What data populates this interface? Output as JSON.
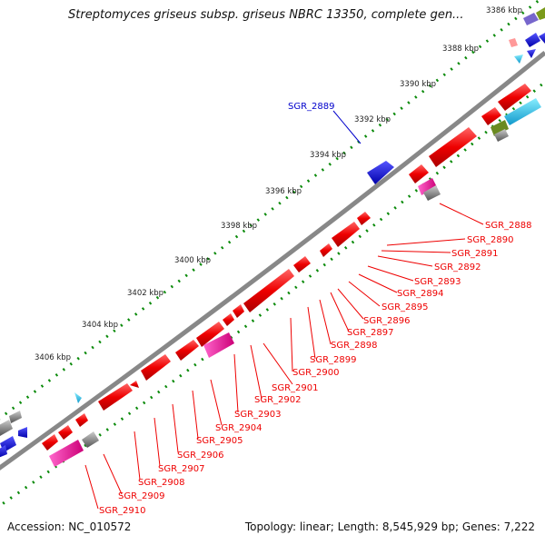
{
  "header": {
    "title": "Streptomyces griseus subsp. griseus NBRC 13350, complete gen..."
  },
  "footer": {
    "accession": "Accession: NC_010572",
    "stats": "Topology: linear; Length: 8,545,929 bp; Genes: 7,222"
  },
  "scale": {
    "ticks": [
      "3386 kbp",
      "3388 kbp",
      "3390 kbp",
      "3392 kbp",
      "3394 kbp",
      "3396 kbp",
      "3398 kbp",
      "3400 kbp",
      "3402 kbp",
      "3404 kbp",
      "3406 kbp"
    ]
  },
  "gene_labels": {
    "above": [
      "SGR_2889"
    ],
    "below": [
      "SGR_2888",
      "SGR_2890",
      "SGR_2891",
      "SGR_2892",
      "SGR_2893",
      "SGR_2894",
      "SGR_2895",
      "SGR_2896",
      "SGR_2897",
      "SGR_2898",
      "SGR_2899",
      "SGR_2900",
      "SGR_2901",
      "SGR_2902",
      "SGR_2903",
      "SGR_2904",
      "SGR_2905",
      "SGR_2906",
      "SGR_2907",
      "SGR_2908",
      "SGR_2909",
      "SGR_2910"
    ]
  },
  "colors": {
    "backbone": "#8c8c8c",
    "cds": "#ff0000",
    "cds_blue": "#0000ee",
    "pink": "#ff33aa",
    "grey": "#888888",
    "cyan": "#33ccee",
    "olive": "#6a8a20",
    "purple": "#7766cc",
    "dots": "#0a8a0a",
    "label_red": "#ee0000",
    "label_blue": "#0000cc"
  }
}
